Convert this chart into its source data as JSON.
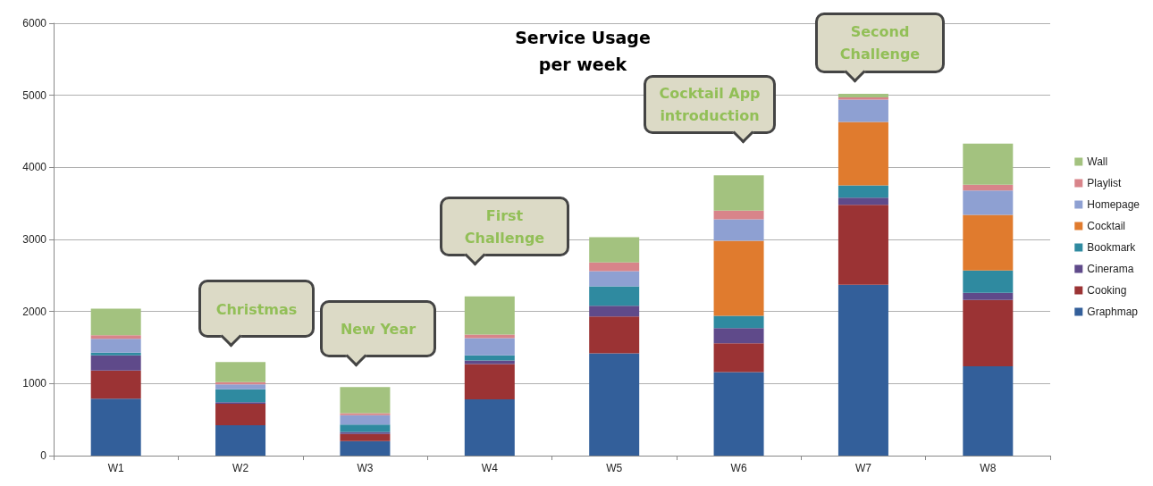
{
  "chart_data": {
    "type": "bar",
    "title": "Service Usage\nper week",
    "stacked": true,
    "categories": [
      "W1",
      "W2",
      "W3",
      "W4",
      "W5",
      "W6",
      "W7",
      "W8"
    ],
    "series": [
      {
        "name": "Graphmap",
        "color": "#335f9a",
        "values": [
          790,
          420,
          200,
          780,
          1420,
          1160,
          2370,
          1240
        ]
      },
      {
        "name": "Cooking",
        "color": "#9b3334",
        "values": [
          390,
          300,
          100,
          490,
          510,
          400,
          1110,
          920
        ]
      },
      {
        "name": "Cinerama",
        "color": "#5f4a8a",
        "values": [
          210,
          20,
          30,
          50,
          150,
          210,
          100,
          100
        ]
      },
      {
        "name": "Bookmark",
        "color": "#2f8aa0",
        "values": [
          40,
          180,
          100,
          70,
          270,
          170,
          170,
          310
        ]
      },
      {
        "name": "Cocktail",
        "color": "#e07b2e",
        "values": [
          0,
          0,
          0,
          0,
          0,
          1040,
          880,
          770
        ]
      },
      {
        "name": "Homepage",
        "color": "#8ea0d2",
        "values": [
          190,
          70,
          130,
          240,
          210,
          300,
          310,
          340
        ]
      },
      {
        "name": "Playlist",
        "color": "#d8848a",
        "values": [
          50,
          30,
          30,
          50,
          120,
          120,
          30,
          80
        ]
      },
      {
        "name": "Wall",
        "color": "#a3c27f",
        "values": [
          370,
          280,
          360,
          530,
          350,
          490,
          50,
          570
        ]
      }
    ],
    "ylim": [
      0,
      6000
    ],
    "yticks": [
      0,
      1000,
      2000,
      3000,
      4000,
      5000,
      6000
    ],
    "grid": "y",
    "legend": "right",
    "annotations": [
      "Christmas",
      "New Year",
      "First\nChallenge",
      "Cocktail App\nintroduction",
      "Second\nChallenge"
    ]
  }
}
